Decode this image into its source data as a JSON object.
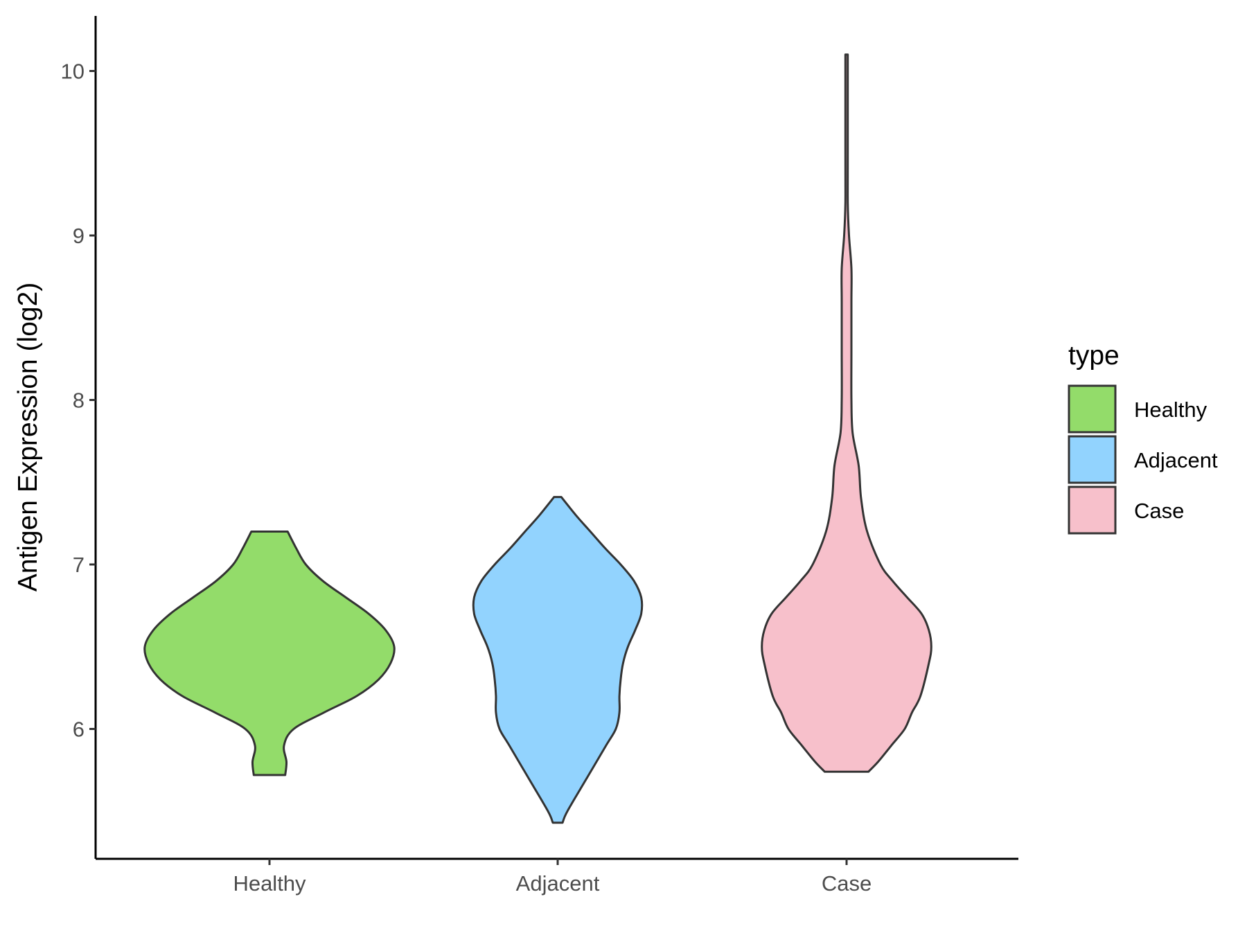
{
  "chart_data": {
    "type": "violin",
    "ylabel": "Antigen Expression (log2)",
    "xlabel": "",
    "title": "",
    "categories": [
      "Healthy",
      "Adjacent",
      "Case"
    ],
    "ylim": [
      5.3,
      10.35
    ],
    "yticks": [
      6,
      7,
      8,
      9,
      10
    ],
    "grid": false,
    "legend": {
      "title": "type",
      "position": "right",
      "entries": [
        {
          "label": "Healthy",
          "color": "#93dc6a"
        },
        {
          "label": "Adjacent",
          "color": "#92d3fe"
        },
        {
          "label": "Case",
          "color": "#f7c0cb"
        }
      ]
    },
    "series": [
      {
        "category": "Healthy",
        "color": "#93dc6a",
        "min": 5.72,
        "max": 7.2,
        "density": [
          [
            5.72,
            0.13
          ],
          [
            5.8,
            0.14
          ],
          [
            5.9,
            0.12
          ],
          [
            6.0,
            0.2
          ],
          [
            6.1,
            0.45
          ],
          [
            6.2,
            0.72
          ],
          [
            6.3,
            0.9
          ],
          [
            6.4,
            1.0
          ],
          [
            6.5,
            1.03
          ],
          [
            6.6,
            0.96
          ],
          [
            6.7,
            0.82
          ],
          [
            6.8,
            0.63
          ],
          [
            6.9,
            0.44
          ],
          [
            7.0,
            0.3
          ],
          [
            7.1,
            0.22
          ],
          [
            7.2,
            0.15
          ]
        ]
      },
      {
        "category": "Adjacent",
        "color": "#92d3fe",
        "min": 5.43,
        "max": 7.41,
        "density": [
          [
            5.43,
            0.04
          ],
          [
            5.5,
            0.08
          ],
          [
            5.7,
            0.24
          ],
          [
            5.9,
            0.4
          ],
          [
            6.0,
            0.48
          ],
          [
            6.1,
            0.51
          ],
          [
            6.2,
            0.51
          ],
          [
            6.3,
            0.52
          ],
          [
            6.4,
            0.54
          ],
          [
            6.5,
            0.58
          ],
          [
            6.6,
            0.64
          ],
          [
            6.7,
            0.69
          ],
          [
            6.8,
            0.69
          ],
          [
            6.9,
            0.63
          ],
          [
            7.0,
            0.52
          ],
          [
            7.1,
            0.39
          ],
          [
            7.2,
            0.27
          ],
          [
            7.3,
            0.15
          ],
          [
            7.41,
            0.03
          ]
        ]
      },
      {
        "category": "Case",
        "color": "#f7c0cb",
        "min": 5.74,
        "max": 10.1,
        "density": [
          [
            5.74,
            0.18
          ],
          [
            5.8,
            0.26
          ],
          [
            5.9,
            0.37
          ],
          [
            6.0,
            0.48
          ],
          [
            6.1,
            0.54
          ],
          [
            6.2,
            0.61
          ],
          [
            6.4,
            0.68
          ],
          [
            6.5,
            0.7
          ],
          [
            6.6,
            0.68
          ],
          [
            6.7,
            0.62
          ],
          [
            6.8,
            0.5
          ],
          [
            6.9,
            0.38
          ],
          [
            7.0,
            0.28
          ],
          [
            7.2,
            0.17
          ],
          [
            7.4,
            0.12
          ],
          [
            7.6,
            0.1
          ],
          [
            7.8,
            0.05
          ],
          [
            8.0,
            0.04
          ],
          [
            8.3,
            0.04
          ],
          [
            8.6,
            0.04
          ],
          [
            8.8,
            0.04
          ],
          [
            9.0,
            0.02
          ],
          [
            9.2,
            0.01
          ],
          [
            9.5,
            0.01
          ],
          [
            10.1,
            0.01
          ]
        ]
      }
    ]
  }
}
